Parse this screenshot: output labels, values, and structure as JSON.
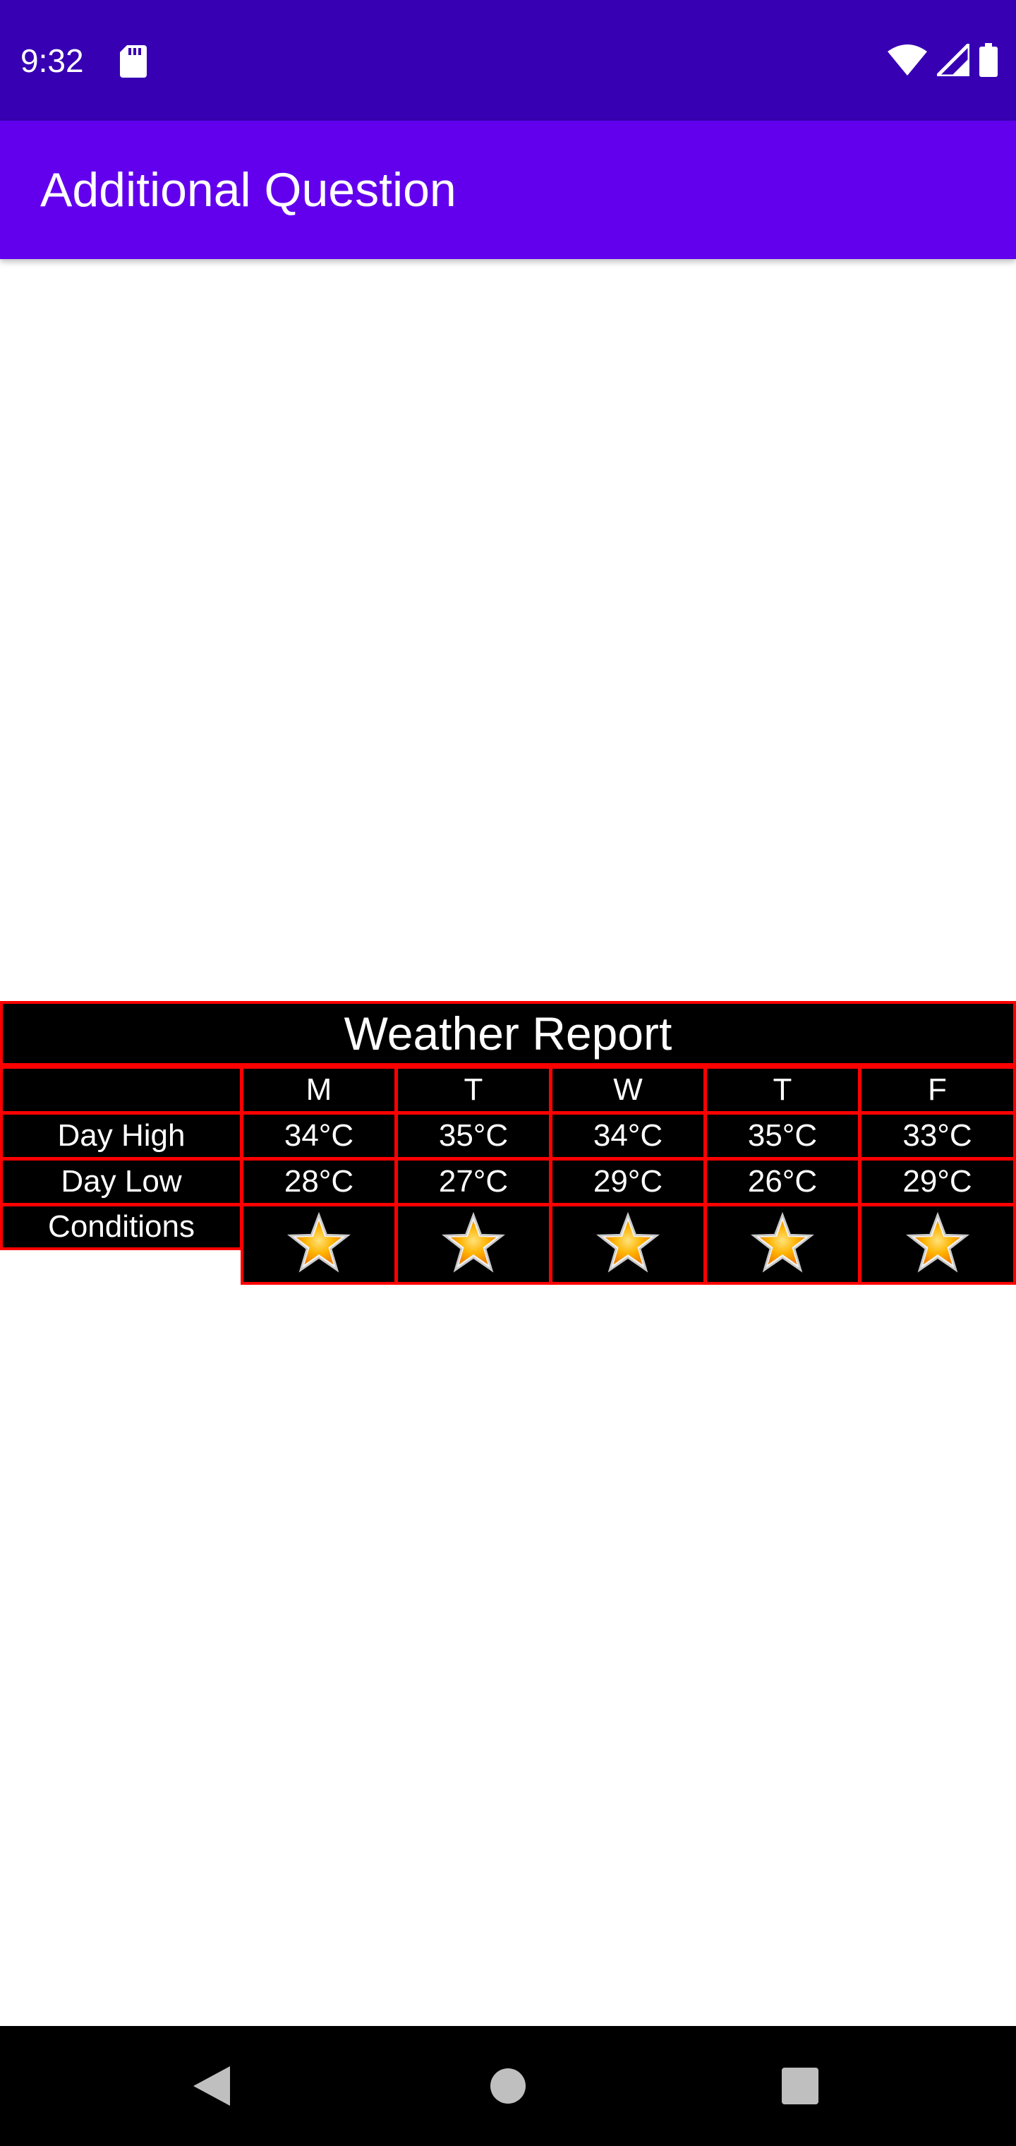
{
  "status_bar": {
    "time": "9:32",
    "icons": [
      "sd-card-icon",
      "wifi-icon",
      "signal-icon",
      "battery-icon"
    ]
  },
  "app_bar": {
    "title": "Additional Question"
  },
  "weather_table": {
    "title": "Weather Report",
    "days": [
      "M",
      "T",
      "W",
      "T",
      "F"
    ],
    "rows": [
      {
        "label": "Day High",
        "values": [
          "34°C",
          "35°C",
          "34°C",
          "35°C",
          "33°C"
        ]
      },
      {
        "label": "Day Low",
        "values": [
          "28°C",
          "27°C",
          "29°C",
          "26°C",
          "29°C"
        ]
      }
    ],
    "conditions_label": "Conditions",
    "conditions_icons": [
      "star-icon",
      "star-icon",
      "star-icon",
      "star-icon",
      "star-icon"
    ]
  },
  "colors": {
    "status_bar": "#3700b3",
    "app_bar": "#6200ee",
    "table_border": "#ff0000",
    "table_bg": "#000000"
  },
  "nav_bar": {
    "buttons": [
      "back-icon",
      "home-icon",
      "recents-icon"
    ]
  }
}
